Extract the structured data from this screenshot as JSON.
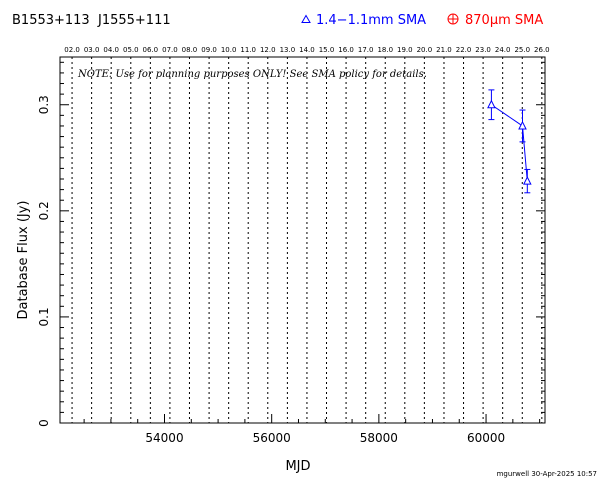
{
  "header": {
    "source_b1950": "B1553+113",
    "source_j2000": "J1555+111",
    "legend_mm": "1.4−1.1mm SMA",
    "legend_submm_prefix": "870",
    "legend_submm_unit": "μm SMA",
    "mm_color": "#0000ff",
    "submm_color": "#ff0000"
  },
  "note": "NOTE: Use for planning purposes ONLY!  See SMA policy for details.",
  "footer": {
    "stamp": "mgurwell 30-Apr-2025 10:57"
  },
  "chart_data": {
    "type": "scatter",
    "xlabel": "MJD",
    "ylabel": "Database Flux (Jy)",
    "xlim": [
      52050,
      61100
    ],
    "ylim": [
      0,
      0.345
    ],
    "x_ticks": [
      54000,
      56000,
      58000,
      60000
    ],
    "x_tick_labels": [
      "54000",
      "56000",
      "58000",
      "60000"
    ],
    "y_ticks": [
      0,
      0.1,
      0.2,
      0.3
    ],
    "y_tick_labels": [
      "0",
      "0.1",
      "0.2",
      "0.3"
    ],
    "top_axis_ticks": [
      {
        "mjd": 52275,
        "label": "02.0"
      },
      {
        "mjd": 52640,
        "label": "03.0"
      },
      {
        "mjd": 53005,
        "label": "04.0"
      },
      {
        "mjd": 53371,
        "label": "05.0"
      },
      {
        "mjd": 53736,
        "label": "06.0"
      },
      {
        "mjd": 54101,
        "label": "07.0"
      },
      {
        "mjd": 54466,
        "label": "08.0"
      },
      {
        "mjd": 54832,
        "label": "09.0"
      },
      {
        "mjd": 55197,
        "label": "10.0"
      },
      {
        "mjd": 55562,
        "label": "11.0"
      },
      {
        "mjd": 55927,
        "label": "12.0"
      },
      {
        "mjd": 56293,
        "label": "13.0"
      },
      {
        "mjd": 56658,
        "label": "14.0"
      },
      {
        "mjd": 57023,
        "label": "15.0"
      },
      {
        "mjd": 57388,
        "label": "16.0"
      },
      {
        "mjd": 57754,
        "label": "17.0"
      },
      {
        "mjd": 58119,
        "label": "18.0"
      },
      {
        "mjd": 58484,
        "label": "19.0"
      },
      {
        "mjd": 58849,
        "label": "20.0"
      },
      {
        "mjd": 59215,
        "label": "21.0"
      },
      {
        "mjd": 59580,
        "label": "22.0"
      },
      {
        "mjd": 59945,
        "label": "23.0"
      },
      {
        "mjd": 60310,
        "label": "24.0"
      },
      {
        "mjd": 60676,
        "label": "25.0"
      },
      {
        "mjd": 61041,
        "label": "26.0"
      }
    ],
    "series": [
      {
        "name": "1.4−1.1mm SMA",
        "color": "#0000ff",
        "marker": "triangle",
        "points": [
          {
            "x": 60100,
            "y": 0.3,
            "err": 0.014
          },
          {
            "x": 60680,
            "y": 0.28,
            "err": 0.015
          },
          {
            "x": 60770,
            "y": 0.228,
            "err": 0.011
          }
        ]
      },
      {
        "name": "870μm SMA",
        "color": "#ff0000",
        "marker": "circle-plus",
        "points": []
      }
    ]
  }
}
